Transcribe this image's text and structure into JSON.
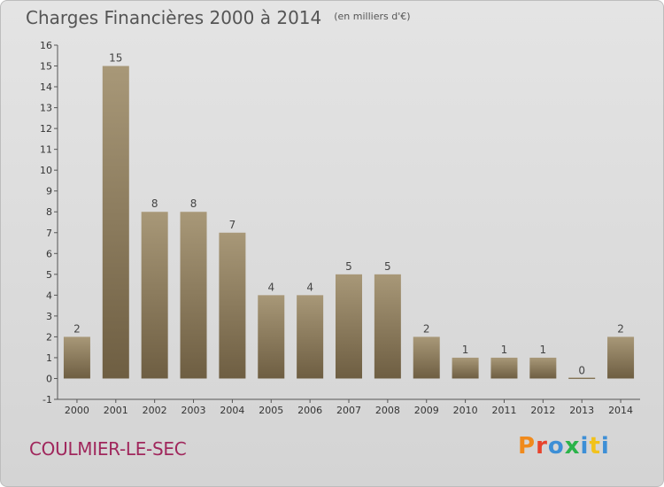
{
  "header": {
    "title": "Charges Financières 2000 à 2014",
    "unit": "(en milliers d'€)"
  },
  "footer": {
    "commune": "COULMIER-LE-SEC",
    "logo": "Proxiti"
  },
  "colors": {
    "background": "#dcdcdc",
    "bar_top": "#a89878",
    "bar_bottom": "#6e5e42",
    "commune_text": "#a0275c",
    "logo_letters": [
      "#f08a1c",
      "#e8432c",
      "#3d8fd6",
      "#2bb34a",
      "#3d8fd6",
      "#f2c21b",
      "#3d8fd6"
    ]
  },
  "chart_data": {
    "type": "bar",
    "title": "Charges Financières 2000 à 2014",
    "subtitle": "(en milliers d'€)",
    "xlabel": "",
    "ylabel": "",
    "categories": [
      "2000",
      "2001",
      "2002",
      "2003",
      "2004",
      "2005",
      "2006",
      "2007",
      "2008",
      "2009",
      "2010",
      "2011",
      "2012",
      "2013",
      "2014"
    ],
    "values": [
      2,
      15,
      8,
      8,
      7,
      4,
      4,
      5,
      5,
      2,
      1,
      1,
      1,
      0,
      2
    ],
    "ylim": [
      -1,
      16
    ],
    "yticks": [
      "-1",
      "0",
      "1",
      "2",
      "3",
      "4",
      "5",
      "6",
      "7",
      "8",
      "9",
      "10",
      "11",
      "12",
      "13",
      "14",
      "15",
      "16"
    ],
    "grid": false,
    "legend": "none"
  }
}
